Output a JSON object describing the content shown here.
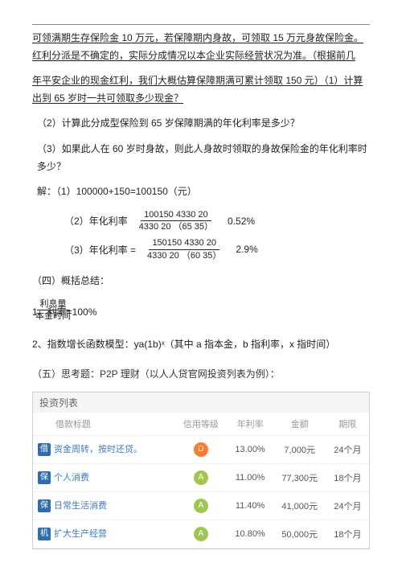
{
  "top": {
    "para1": "可领满期生存保险金 10 万元，若保障期内身故，可领取 15 万元身故保险金。红利分派是不确定的，实际分成情况以本企业实际经营状况为准。（根据前几",
    "para2": "年平安企业的现金红利，我们大概估算保障期满可累计领取 150 元）（1）计算出到 65 岁时一共可领取多少现金？",
    "q2": "（2）计算此分成型保险到 65 岁保障期满的年化利率是多少？",
    "q3": "（3）如果此人在 60 岁时身故，则此人身故时领取的身故保险金的年化利率时多少？",
    "sol1_label": "解：（1）100000+150=100150（元）",
    "sol2_label": "（2）年化利率",
    "sol2_num": "100150     4330 20",
    "sol2_den": "4330   20  （65  35）",
    "sol2_val": "0.52%",
    "sol3_label": "（3）年化利率  =",
    "sol3_num": "150150  4330   20",
    "sol3_den": "4330   20  （60  35）",
    "sol3_val": "2.9%"
  },
  "sec4": {
    "title": "（四）概括总结：",
    "item1_prefix": "1、利率=100%",
    "item1_num": "利息量",
    "item1_den": "本金时间",
    "item2": "2、指数增长函数模型：ya(1b)ˣ（其中 a 指本金，b 指利率，x 指时间）"
  },
  "sec5": {
    "title": "（五）思考题：P2P 理财（以人人贷官网投资列表为例）："
  },
  "table": {
    "list_title": "投资列表",
    "headers": [
      "借款标题",
      "信用等级",
      "年利率",
      "金额",
      "期限"
    ],
    "rows": [
      {
        "icon": "借",
        "title": "资金周转，按时还贷。",
        "grade": "D",
        "grade_color": "c-orange",
        "rate": "13.00%",
        "amount": "7,000元",
        "term": "24个月"
      },
      {
        "icon": "保",
        "title": "个人消费",
        "grade": "A",
        "grade_color": "c-green",
        "rate": "11.00%",
        "amount": "77,300元",
        "term": "18个月"
      },
      {
        "icon": "保",
        "title": "日常生活消费",
        "grade": "A",
        "grade_color": "c-green",
        "rate": "11.40%",
        "amount": "41,000元",
        "term": "24个月"
      },
      {
        "icon": "机",
        "title": "扩大生产经营",
        "grade": "A",
        "grade_color": "c-green",
        "rate": "10.80%",
        "amount": "50,000元",
        "term": "18个月"
      }
    ]
  }
}
